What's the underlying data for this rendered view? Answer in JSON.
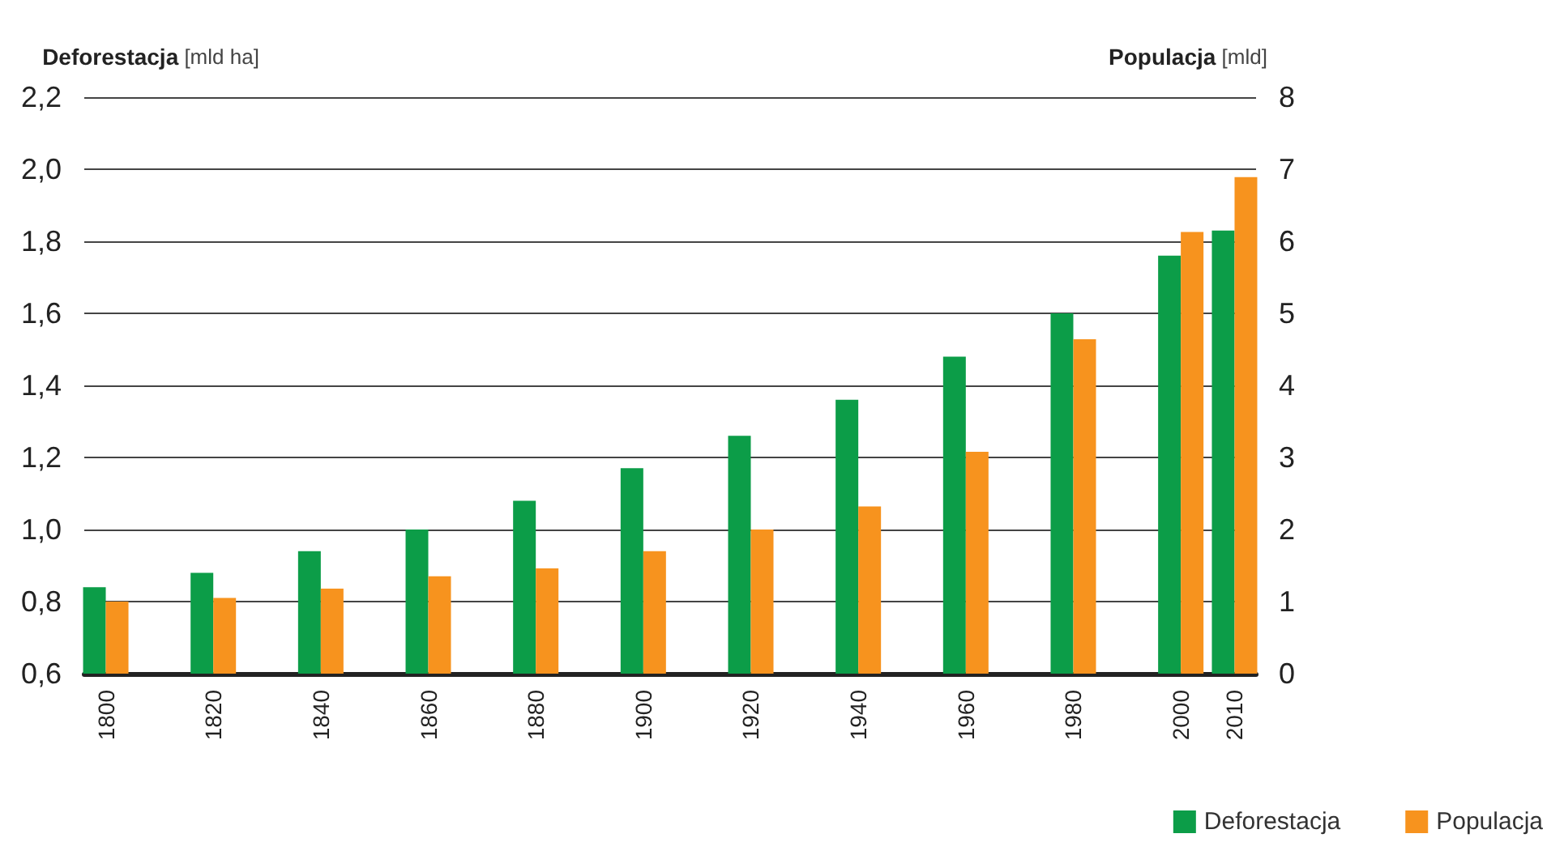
{
  "chart_data": {
    "type": "bar",
    "ylabel": "Deforestacja [mld ha]",
    "y2label": "Populacja [mld]",
    "x": [
      1800,
      1820,
      1840,
      1860,
      1880,
      1900,
      1920,
      1940,
      1960,
      1980,
      2000,
      2010
    ],
    "xlim": [
      1796,
      2014
    ],
    "xticks": [
      1800,
      1820,
      1840,
      1860,
      1880,
      1900,
      1920,
      1940,
      1960,
      1980,
      2000,
      2010
    ],
    "series": [
      {
        "name": "Deforestacja",
        "color": "#0c9d48",
        "values": [
          0.84,
          0.88,
          0.94,
          1.0,
          1.08,
          1.17,
          1.26,
          1.36,
          1.48,
          1.6,
          1.76,
          1.83
        ]
      },
      {
        "name": "Populacja",
        "color": "#f7931e",
        "axis": "y2",
        "values": [
          1.0,
          1.05,
          1.18,
          1.35,
          1.46,
          1.7,
          2.0,
          2.32,
          3.08,
          4.64,
          6.13,
          6.89
        ]
      }
    ],
    "ylim": [
      0.6,
      2.2
    ],
    "yticks": [
      {
        "value": 0.6,
        "label": "0,6"
      },
      {
        "value": 0.8,
        "label": "0,8"
      },
      {
        "value": 1.0,
        "label": "1,0"
      },
      {
        "value": 1.2,
        "label": "1,2"
      },
      {
        "value": 1.4,
        "label": "1,4"
      },
      {
        "value": 1.6,
        "label": "1,6"
      },
      {
        "value": 1.8,
        "label": "1,8"
      },
      {
        "value": 2.0,
        "label": "2,0"
      },
      {
        "value": 2.2,
        "label": "2,2"
      }
    ],
    "y2lim": [
      0,
      8
    ],
    "y2ticks": [
      0,
      1,
      2,
      3,
      4,
      5,
      6,
      7,
      8
    ],
    "grid": "y",
    "legend": "bottom right"
  }
}
